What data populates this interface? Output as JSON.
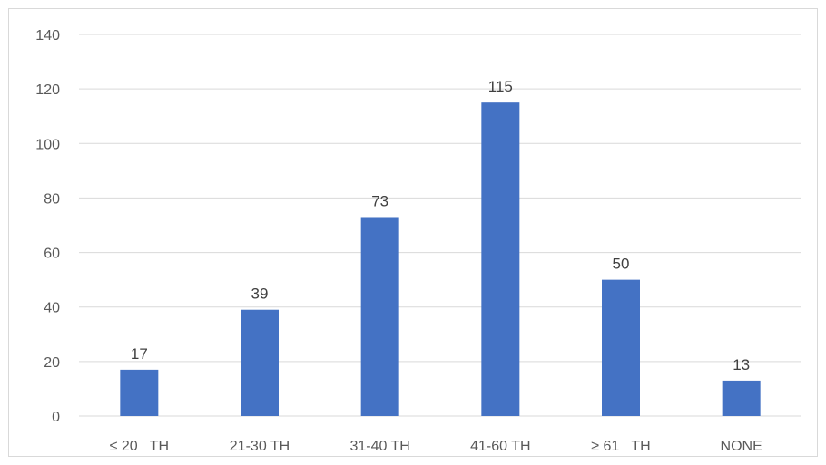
{
  "chart_data": {
    "type": "bar",
    "title": "",
    "xlabel": "",
    "ylabel": "",
    "categories": [
      "≤ 20   TH",
      "21-30 TH",
      "31-40 TH",
      "41-60 TH",
      "≥ 61   TH",
      "NONE"
    ],
    "values": [
      17,
      39,
      73,
      115,
      50,
      13
    ],
    "data_labels": [
      "17",
      "39",
      "73",
      "115",
      "50",
      "13"
    ],
    "ylim": [
      0,
      140
    ],
    "yticks": [
      "0",
      "20",
      "40",
      "60",
      "80",
      "100",
      "120",
      "140"
    ],
    "grid": true,
    "legend": "none",
    "bar_color": "#4472c4",
    "grid_color": "#d9d9d9"
  }
}
